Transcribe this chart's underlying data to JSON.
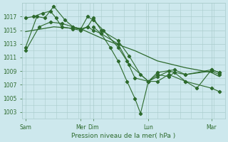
{
  "bg_color": "#cde8ed",
  "grid_color": "#aacccc",
  "line_color": "#2d6a2d",
  "marker_color": "#2d6a2d",
  "xlabel": "Pression niveau de la mer( hPa )",
  "ylim": [
    1002,
    1019
  ],
  "yticks": [
    1003,
    1005,
    1007,
    1009,
    1011,
    1013,
    1015,
    1017
  ],
  "xlim": [
    0,
    18
  ],
  "xtick_labels": [
    "Sam",
    "Mer",
    "Dim",
    "Lun",
    "Mar"
  ],
  "xtick_positions": [
    0.3,
    5.2,
    6.3,
    11.2,
    16.8
  ],
  "line1_x": [
    0.3,
    1.0,
    1.8,
    2.5,
    3.0,
    3.5,
    4.5,
    5.2,
    5.8,
    6.3,
    7.0,
    8.5,
    9.5,
    10.5,
    11.2,
    12.0,
    13.0,
    14.5,
    16.8,
    17.5
  ],
  "line1_y": [
    1016.8,
    1017.0,
    1017.5,
    1017.8,
    1016.8,
    1015.5,
    1015.2,
    1015.0,
    1015.5,
    1016.8,
    1015.0,
    1013.5,
    1011.2,
    1008.5,
    1007.5,
    1008.2,
    1009.0,
    1008.5,
    1009.0,
    1008.5
  ],
  "line2_x": [
    0.3,
    1.3,
    2.0,
    2.8,
    3.8,
    4.5,
    5.2,
    5.8,
    6.3,
    7.2,
    8.5,
    9.3,
    10.0,
    11.2,
    12.0,
    13.5,
    14.5,
    16.8,
    17.5
  ],
  "line2_y": [
    1012.5,
    1017.0,
    1016.8,
    1018.5,
    1016.5,
    1015.5,
    1015.2,
    1017.0,
    1016.5,
    1015.0,
    1012.5,
    1010.5,
    1008.0,
    1007.5,
    1008.8,
    1009.2,
    1008.5,
    1009.2,
    1008.8
  ],
  "line3_x": [
    0.3,
    1.5,
    2.5,
    3.5,
    4.5,
    5.2,
    5.8,
    6.3,
    7.0,
    8.5,
    9.5,
    11.2,
    12.0,
    13.0,
    14.5,
    16.8,
    17.5
  ],
  "line3_y": [
    1012.0,
    1015.5,
    1016.2,
    1016.0,
    1015.5,
    1015.2,
    1015.5,
    1015.0,
    1014.5,
    1013.0,
    1010.0,
    1007.5,
    1007.5,
    1008.5,
    1007.5,
    1006.5,
    1006.0
  ],
  "line4_x": [
    0.3,
    2.8,
    5.2,
    7.5,
    10.0,
    12.0,
    14.5,
    16.8,
    17.5
  ],
  "line4_y": [
    1014.8,
    1015.5,
    1015.2,
    1013.5,
    1012.0,
    1010.5,
    1009.5,
    1008.8,
    1008.2
  ],
  "line5_x": [
    6.3,
    7.0,
    7.8,
    8.5,
    9.3,
    10.0,
    10.5,
    11.2,
    12.0,
    13.0,
    13.5,
    14.5,
    15.5,
    16.8,
    17.5
  ],
  "line5_y": [
    1015.5,
    1014.5,
    1012.5,
    1010.5,
    1007.5,
    1005.0,
    1002.8,
    1007.5,
    1008.5,
    1008.2,
    1008.8,
    1007.5,
    1006.5,
    1009.2,
    1008.8
  ]
}
